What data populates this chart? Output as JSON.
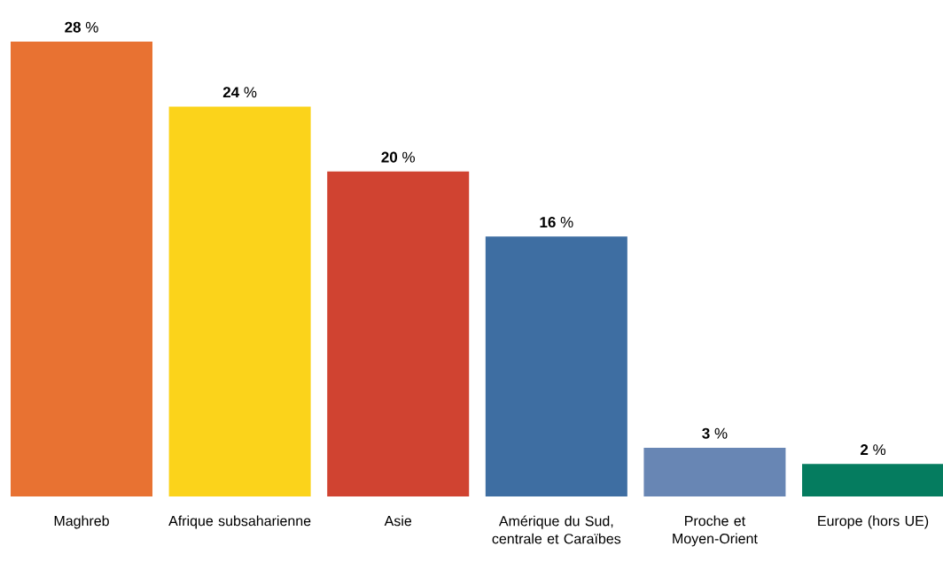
{
  "chart_data": {
    "type": "bar",
    "categories": [
      "Maghreb",
      "Afrique subsaharienne",
      "Asie",
      "Amérique du Sud, centrale et Caraïbes",
      "Proche et Moyen-Orient",
      "Europe (hors UE)"
    ],
    "values": [
      28,
      24,
      20,
      16,
      3,
      2
    ],
    "colors": [
      "#e87232",
      "#fbd31b",
      "#d04331",
      "#3e6ea2",
      "#6886b4",
      "#057c5f"
    ],
    "value_labels": [
      "**28** %",
      "**24** %",
      "**20** %",
      "**16** %",
      "**3** %",
      "**2** %"
    ]
  }
}
